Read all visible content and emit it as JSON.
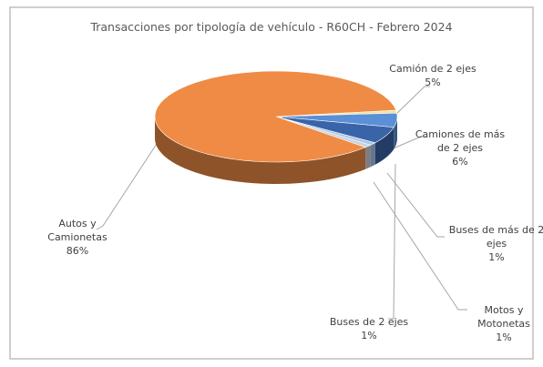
{
  "chart_data": {
    "type": "pie3d",
    "title": "Transacciones por tipología de vehículo - R60CH - Febrero 2024",
    "categories": [
      "Motos y Motonetas",
      "Camión de 2 ejes",
      "Camiones de más de 2 ejes",
      "Buses de más de 2 ejes",
      "Buses de 2 ejes",
      "Autos y Camionetas"
    ],
    "values": [
      1,
      5,
      6,
      1,
      1,
      86
    ],
    "value_labels": [
      "1%",
      "5%",
      "6%",
      "1%",
      "1%",
      "86%"
    ],
    "colors": [
      "#f4e3a0",
      "#5b8fd6",
      "#3a64a8",
      "#a9c7ea",
      "#c9d2dc",
      "#ef8b45"
    ]
  }
}
